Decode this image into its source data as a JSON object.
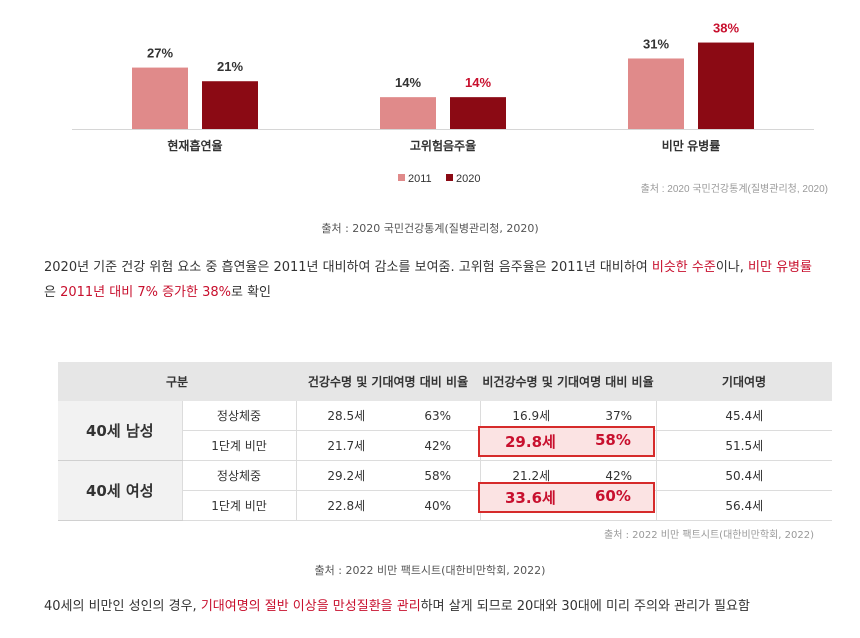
{
  "chart_data": {
    "type": "bar",
    "categories": [
      "현재흡연율",
      "고위험음주율",
      "비만 유병률"
    ],
    "series": [
      {
        "name": "2011",
        "values": [
          27,
          14,
          31
        ],
        "labels": [
          "27%",
          "14%",
          "31%"
        ],
        "color": "#e08a8a"
      },
      {
        "name": "2020",
        "values": [
          21,
          14,
          38
        ],
        "labels": [
          "21%",
          "14%",
          "38%"
        ],
        "color": "#8b0a14"
      }
    ],
    "label_colors": [
      "#333333",
      "#c8102e",
      "#c8102e"
    ],
    "ylim": [
      0,
      40
    ],
    "legend": "bottom-center",
    "source": "출처 : 2020 국민건강통계(질병관리청, 2020)"
  },
  "caption1": "출처 : 2020 국민건강통계(질병관리청, 2020)",
  "para1": {
    "p1": "2020년 기준 건강 위험 요소 중 흡연율은 2011년 대비하여 감소를 보여줌. 고위험 음주율은 2011년 대비하여 ",
    "r1": "비슷한 수준",
    "p2": "이나, ",
    "r2": "비만 유병률",
    "p3": "은 ",
    "r3": "2011년 대비 7% 증가한 38%",
    "p4": "로 확인"
  },
  "table": {
    "headers": [
      "구분",
      "건강수명 및 기대여명 대비 비율",
      "비건강수명 및 기대여명 대비 비율",
      "기대여명"
    ],
    "groups": [
      {
        "name": "40세 남성",
        "rows": [
          {
            "sub": "정상체중",
            "a": "28.5세",
            "b": "63%",
            "c": "16.9세",
            "d": "37%",
            "e": "45.4세"
          },
          {
            "sub": "1단계 비만",
            "a": "21.7세",
            "b": "42%",
            "c": "29.8세",
            "d": "58%",
            "e": "51.5세"
          }
        ]
      },
      {
        "name": "40세 여성",
        "rows": [
          {
            "sub": "정상체중",
            "a": "29.2세",
            "b": "58%",
            "c": "21.2세",
            "d": "42%",
            "e": "50.4세"
          },
          {
            "sub": "1단계 비만",
            "a": "22.8세",
            "b": "40%",
            "c": "33.6세",
            "d": "60%",
            "e": "56.4세"
          }
        ]
      }
    ],
    "source": "출처 : 2022 비만 팩트시트(대한비만학회, 2022)",
    "highlight_color": "#d62b2b"
  },
  "caption2": "출처 : 2022 비만 팩트시트(대한비만학회, 2022)",
  "para2": {
    "p1": "40세의 비만인 성인의 경우, ",
    "r1": "기대여명의 절반 이상을 만성질환을 관리",
    "p2": "하며 살게 되므로 20대와 30대에 미리 주의와 관리가 필요함"
  }
}
